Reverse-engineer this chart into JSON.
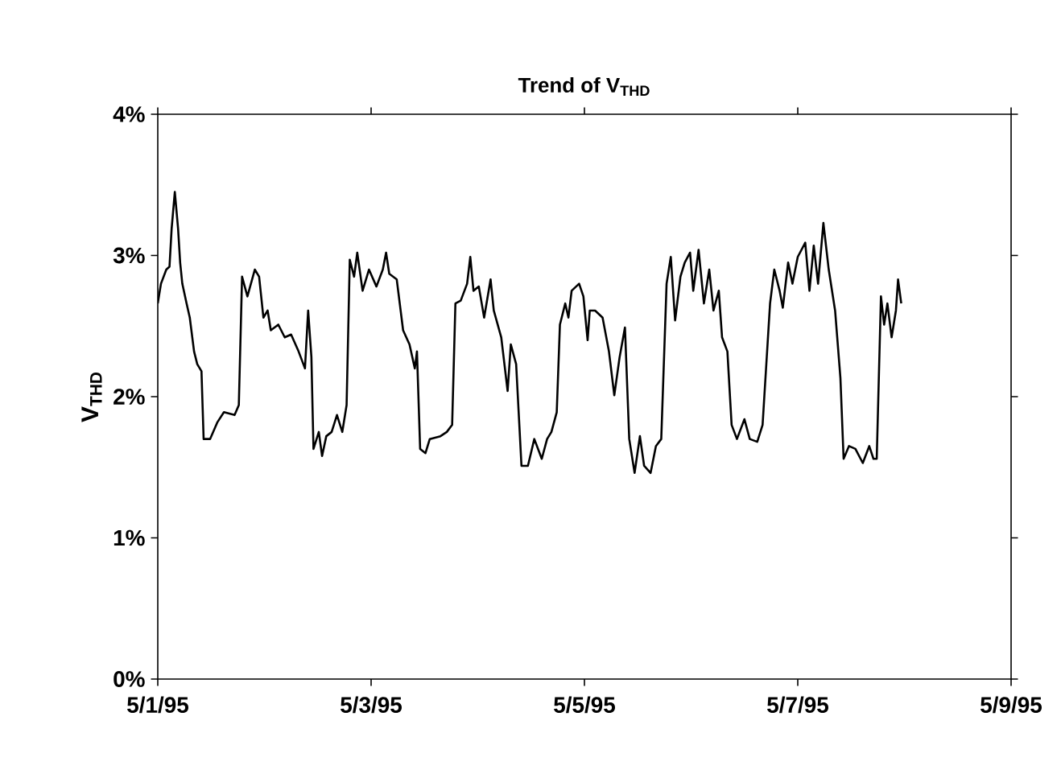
{
  "chart_data": {
    "type": "line",
    "title": "Trend of V$_{THD}$",
    "ylabel": "V$_{THD}$",
    "xlim": [
      "1995-05-01",
      "1995-05-09"
    ],
    "xticks": [
      {
        "value": "1995-05-01",
        "label": "5/1/95"
      },
      {
        "value": "1995-05-03",
        "label": "5/3/95"
      },
      {
        "value": "1995-05-05",
        "label": "5/5/95"
      },
      {
        "value": "1995-05-07",
        "label": "5/7/95"
      },
      {
        "value": "1995-05-09",
        "label": "5/9/95"
      }
    ],
    "ylim": [
      0,
      4
    ],
    "yticks": [
      {
        "value": 0,
        "label": "0%"
      },
      {
        "value": 1,
        "label": "1%"
      },
      {
        "value": 2,
        "label": "2%"
      },
      {
        "value": 3,
        "label": "3%"
      },
      {
        "value": 4,
        "label": "4%"
      }
    ],
    "grid": false,
    "marker": "none",
    "line_style": "solid",
    "x": [
      "1995-05-01T00:00",
      "1995-05-01T00:43",
      "1995-05-01T01:55",
      "1995-05-01T02:38",
      "1995-05-01T03:07",
      "1995-05-01T03:50",
      "1995-05-01T04:34",
      "1995-05-01T05:02",
      "1995-05-01T05:31",
      "1995-05-01T06:29",
      "1995-05-01T07:12",
      "1995-05-01T08:10",
      "1995-05-01T08:53",
      "1995-05-01T09:50",
      "1995-05-01T10:19",
      "1995-05-01T11:46",
      "1995-05-01T13:26",
      "1995-05-01T14:53",
      "1995-05-01T17:17",
      "1995-05-01T18:14",
      "1995-05-01T18:58",
      "1995-05-01T20:10",
      "1995-05-01T21:50",
      "1995-05-01T22:48",
      "1995-05-01T23:46",
      "1995-05-02T00:43",
      "1995-05-02T01:26",
      "1995-05-02T03:07",
      "1995-05-02T04:34",
      "1995-05-02T06:00",
      "1995-05-02T07:41",
      "1995-05-02T09:07",
      "1995-05-02T09:50",
      "1995-05-02T10:34",
      "1995-05-02T11:02",
      "1995-05-02T12:14",
      "1995-05-02T12:58",
      "1995-05-02T13:55",
      "1995-05-02T15:07",
      "1995-05-02T16:19",
      "1995-05-02T17:31",
      "1995-05-02T18:29",
      "1995-05-02T19:12",
      "1995-05-02T20:10",
      "1995-05-02T20:53",
      "1995-05-02T22:05",
      "1995-05-02T23:31",
      "1995-05-03T01:12",
      "1995-05-03T02:38",
      "1995-05-03T03:22",
      "1995-05-03T04:05",
      "1995-05-03T05:46",
      "1995-05-03T07:12",
      "1995-05-03T08:38",
      "1995-05-03T09:50",
      "1995-05-03T10:19",
      "1995-05-03T11:02",
      "1995-05-03T12:14",
      "1995-05-03T13:12",
      "1995-05-03T15:36",
      "1995-05-03T17:02",
      "1995-05-03T18:14",
      "1995-05-03T18:58",
      "1995-05-03T20:10",
      "1995-05-03T21:36",
      "1995-05-03T22:19",
      "1995-05-03T23:02",
      "1995-05-04T00:14",
      "1995-05-04T01:26",
      "1995-05-04T02:53",
      "1995-05-04T03:36",
      "1995-05-04T05:17",
      "1995-05-04T06:43",
      "1995-05-04T07:26",
      "1995-05-04T08:38",
      "1995-05-04T09:50",
      "1995-05-04T11:17",
      "1995-05-04T12:43",
      "1995-05-04T14:24",
      "1995-05-04T15:36",
      "1995-05-04T16:34",
      "1995-05-04T17:46",
      "1995-05-04T18:29",
      "1995-05-04T19:41",
      "1995-05-04T20:24",
      "1995-05-04T21:07",
      "1995-05-04T22:48",
      "1995-05-04T23:46",
      "1995-05-05T00:43",
      "1995-05-05T01:12",
      "1995-05-05T02:24",
      "1995-05-05T04:05",
      "1995-05-05T05:31",
      "1995-05-05T06:43",
      "1995-05-05T07:55",
      "1995-05-05T09:07",
      "1995-05-05T10:05",
      "1995-05-05T11:17",
      "1995-05-05T12:29",
      "1995-05-05T13:26",
      "1995-05-05T14:53",
      "1995-05-05T16:05",
      "1995-05-05T17:17",
      "1995-05-05T18:29",
      "1995-05-05T19:26",
      "1995-05-05T20:24",
      "1995-05-05T21:36",
      "1995-05-05T22:34",
      "1995-05-05T23:46",
      "1995-05-06T00:29",
      "1995-05-06T01:41",
      "1995-05-06T02:53",
      "1995-05-06T04:05",
      "1995-05-06T05:02",
      "1995-05-06T06:14",
      "1995-05-06T06:58",
      "1995-05-06T08:10",
      "1995-05-06T09:07",
      "1995-05-06T10:19",
      "1995-05-06T12:00",
      "1995-05-06T13:12",
      "1995-05-06T14:53",
      "1995-05-06T16:05",
      "1995-05-06T17:46",
      "1995-05-06T18:43",
      "1995-05-06T19:55",
      "1995-05-06T20:38",
      "1995-05-06T21:50",
      "1995-05-06T22:48",
      "1995-05-07T00:00",
      "1995-05-07T01:41",
      "1995-05-07T02:38",
      "1995-05-07T03:36",
      "1995-05-07T04:34",
      "1995-05-07T05:46",
      "1995-05-07T06:58",
      "1995-05-07T08:24",
      "1995-05-07T09:36",
      "1995-05-07T10:19",
      "1995-05-07T11:31",
      "1995-05-07T12:58",
      "1995-05-07T14:38",
      "1995-05-07T16:05",
      "1995-05-07T17:02",
      "1995-05-07T17:46",
      "1995-05-07T18:43",
      "1995-05-07T19:26",
      "1995-05-07T20:10",
      "1995-05-07T21:07",
      "1995-05-07T22:05",
      "1995-05-07T22:34",
      "1995-05-07T23:17"
    ],
    "series": [
      {
        "color": "#000000",
        "values": [
          2.66,
          2.8,
          2.9,
          2.92,
          3.19,
          3.45,
          3.19,
          2.95,
          2.8,
          2.66,
          2.56,
          2.32,
          2.23,
          2.18,
          1.7,
          1.7,
          1.82,
          1.89,
          1.87,
          1.94,
          2.85,
          2.71,
          2.9,
          2.85,
          2.56,
          2.61,
          2.47,
          2.51,
          2.42,
          2.44,
          2.32,
          2.2,
          2.61,
          2.28,
          1.63,
          1.75,
          1.58,
          1.72,
          1.75,
          1.87,
          1.75,
          1.94,
          2.97,
          2.85,
          3.02,
          2.75,
          2.9,
          2.78,
          2.9,
          3.02,
          2.87,
          2.83,
          2.47,
          2.37,
          2.2,
          2.32,
          1.63,
          1.6,
          1.7,
          1.72,
          1.75,
          1.8,
          2.66,
          2.68,
          2.8,
          2.99,
          2.75,
          2.78,
          2.56,
          2.83,
          2.61,
          2.42,
          2.04,
          2.37,
          2.23,
          1.51,
          1.51,
          1.7,
          1.56,
          1.7,
          1.75,
          1.89,
          2.51,
          2.66,
          2.56,
          2.75,
          2.8,
          2.71,
          2.4,
          2.61,
          2.61,
          2.56,
          2.32,
          2.01,
          2.28,
          2.49,
          1.7,
          1.46,
          1.72,
          1.51,
          1.46,
          1.65,
          1.7,
          2.8,
          2.99,
          2.54,
          2.85,
          2.95,
          3.02,
          2.75,
          3.04,
          2.66,
          2.9,
          2.61,
          2.75,
          2.42,
          2.32,
          1.8,
          1.7,
          1.84,
          1.7,
          1.68,
          1.8,
          2.66,
          2.9,
          2.75,
          2.63,
          2.95,
          2.8,
          2.99,
          3.09,
          2.75,
          3.07,
          2.8,
          3.23,
          2.9,
          2.61,
          2.13,
          1.56,
          1.65,
          1.63,
          1.53,
          1.65,
          1.56,
          1.56,
          2.71,
          2.51,
          2.66,
          2.42,
          2.61,
          2.83,
          2.66
        ]
      }
    ]
  }
}
